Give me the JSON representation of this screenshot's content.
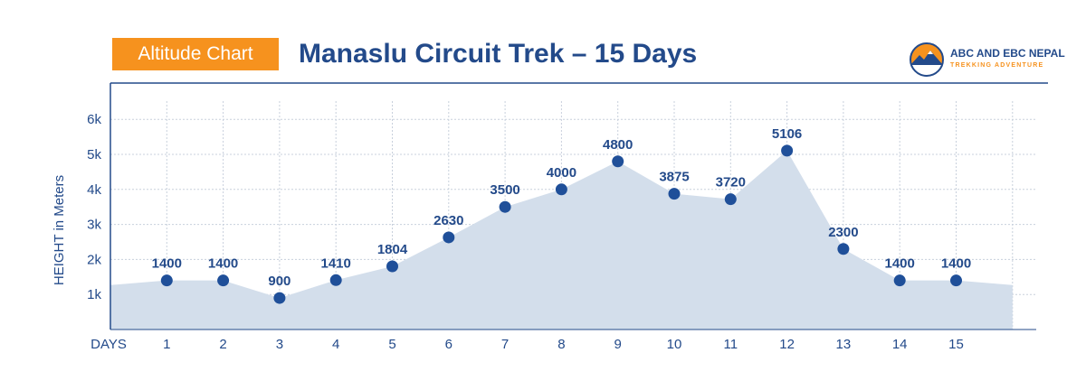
{
  "header": {
    "badge": "Altitude Chart",
    "title": "Manaslu Circuit Trek – 15 Days"
  },
  "logo": {
    "name": "ABC AND EBC NEPAL",
    "tagline": "TREKKING ADVENTURE"
  },
  "colors": {
    "accent": "#f6921e",
    "primary": "#234a8a",
    "area": "#d3deeb",
    "marker": "#1f4f99",
    "grid": "#c8d0dc"
  },
  "chart_data": {
    "type": "area",
    "title": "Altitude Chart",
    "subtitle": "Manaslu Circuit Trek – 15 Days",
    "xlabel": "DAYS",
    "ylabel": "HEIGHT in Meters",
    "x": [
      1,
      2,
      3,
      4,
      5,
      6,
      7,
      8,
      9,
      10,
      11,
      12,
      13,
      14,
      15
    ],
    "series": [
      {
        "values": [
          1400,
          1400,
          900,
          1410,
          1804,
          2630,
          3500,
          4000,
          4800,
          3875,
          3720,
          5106,
          2300,
          1400,
          1400
        ]
      }
    ],
    "data_labels": [
      "1400",
      "1400",
      "900",
      "1410",
      "1804",
      "2630",
      "3500",
      "4000",
      "4800",
      "3875",
      "3720",
      "5106",
      "2300",
      "1400",
      "1400"
    ],
    "y_ticks": [
      1000,
      2000,
      3000,
      4000,
      5000,
      6000
    ],
    "y_tick_labels": [
      "1k",
      "2k",
      "3k",
      "4k",
      "5k",
      "6k"
    ],
    "x_tick_labels": [
      "1",
      "2",
      "3",
      "4",
      "5",
      "6",
      "7",
      "8",
      "9",
      "10",
      "11",
      "12",
      "13",
      "14",
      "15"
    ],
    "xlim": [
      0,
      16
    ],
    "ylim": [
      0,
      6000
    ],
    "grid": true,
    "legend": "none"
  }
}
